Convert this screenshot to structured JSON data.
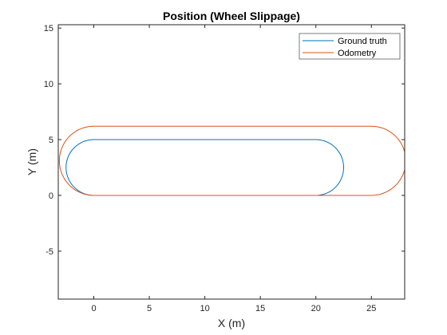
{
  "chart_data": {
    "type": "line",
    "title": "Position (Wheel Slippage)",
    "xlabel": "X (m)",
    "ylabel": "Y (m)",
    "xlim": [
      -3.2,
      28
    ],
    "ylim": [
      -9.3,
      15.3
    ],
    "xticks": [
      0,
      5,
      10,
      15,
      20,
      25
    ],
    "yticks": [
      -5,
      0,
      5,
      10,
      15
    ],
    "grid": false,
    "legend_position": "top-right",
    "series": [
      {
        "name": "Ground truth",
        "color": "#0072BD",
        "shape": {
          "straight_start": [
            0,
            0
          ],
          "straight_end": [
            20,
            0
          ],
          "turn_center": [
            20,
            2.5
          ],
          "turn_radius": 2.5,
          "top_start": [
            20,
            5
          ],
          "top_end": [
            0,
            5
          ],
          "back_turn_center": [
            0,
            2.5
          ],
          "back_turn_radius": 2.5,
          "end_point": [
            0,
            0
          ]
        }
      },
      {
        "name": "Odometry",
        "color": "#D95319",
        "shape": {
          "straight_start": [
            0,
            0
          ],
          "straight_end": [
            25,
            0
          ],
          "turn_center": [
            25,
            3.1
          ],
          "turn_radius": 3.1,
          "top_start": [
            25,
            6.2
          ],
          "top_end": [
            0,
            6.2
          ],
          "back_turn_center": [
            0,
            3.1
          ],
          "back_turn_radius": 3.1,
          "end_point": [
            0,
            0
          ]
        }
      }
    ]
  }
}
